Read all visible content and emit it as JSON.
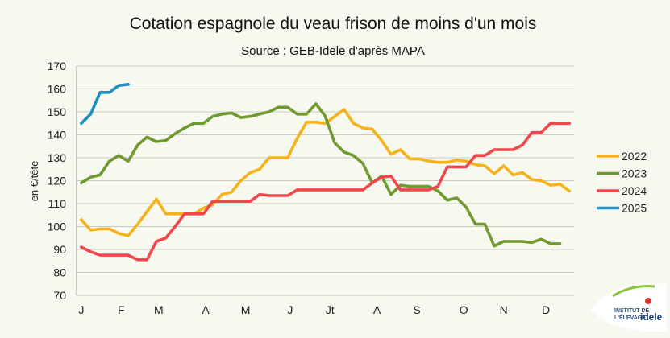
{
  "chart_data": {
    "type": "line",
    "title": "Cotation espagnole du veau frison de moins d'un mois",
    "subtitle": "Source : GEB-Idele d'après MAPA",
    "ylabel": "en €/tête",
    "xlabel": "",
    "ylim": [
      70,
      170
    ],
    "yticks": [
      70,
      80,
      90,
      100,
      110,
      120,
      130,
      140,
      150,
      160,
      170
    ],
    "week_count": 53,
    "month_ticks": [
      {
        "label": "J",
        "week": 1
      },
      {
        "label": "F",
        "week": 9.5
      },
      {
        "label": "M",
        "week": 17.5
      },
      {
        "label": "A",
        "week": 27.5
      },
      {
        "label": "M",
        "week": 36.0
      },
      {
        "label": "J",
        "week": 45.5
      },
      {
        "label": "Jt",
        "week": 54.0
      },
      {
        "label": "A",
        "week": 64.0
      },
      {
        "label": "S",
        "week": 72.5
      },
      {
        "label": "O",
        "week": 82.5
      },
      {
        "label": "N",
        "week": 91.0
      },
      {
        "label": "D",
        "week": 100.0
      }
    ],
    "grid": true,
    "legend_position": "right",
    "series": [
      {
        "name": "2022",
        "color": "#f6b21b",
        "values": [
          103,
          98.5,
          99,
          99,
          97,
          96,
          101,
          106.5,
          112,
          105.5,
          105.5,
          105.5,
          105.5,
          108,
          109.5,
          114,
          115,
          120,
          123.5,
          125,
          130,
          130,
          130,
          138.5,
          145.5,
          145.5,
          145,
          148,
          151,
          145,
          143,
          142.5,
          137.5,
          131.5,
          133.5,
          129.5,
          129.5,
          128.5,
          128,
          128,
          129,
          128.5,
          127,
          126.5,
          123,
          126.5,
          122.5,
          123.5,
          120.5,
          120,
          118,
          118.5,
          115.5
        ]
      },
      {
        "name": "2023",
        "color": "#6f9a2f",
        "values": [
          119,
          121.5,
          122.5,
          128.5,
          131,
          128.5,
          135.5,
          139,
          137,
          137.5,
          140.5,
          143,
          145,
          145,
          148,
          149,
          149.5,
          147.5,
          148,
          149,
          150,
          152,
          152,
          149,
          149,
          153.5,
          148,
          136.5,
          132.5,
          131,
          127.5,
          119,
          122,
          114,
          118,
          117.5,
          117.5,
          117.5,
          115.5,
          111.5,
          112.5,
          108.5,
          101,
          101,
          91.5,
          93.5,
          93.5,
          93.5,
          93,
          94.5,
          92.5,
          92.5
        ]
      },
      {
        "name": "2024",
        "color": "#f1474b",
        "values": [
          91,
          89,
          87.5,
          87.5,
          87.5,
          87.5,
          85.5,
          85.5,
          93.5,
          95,
          100,
          105.5,
          105.5,
          105.5,
          111,
          111,
          111,
          111,
          111,
          114,
          113.5,
          113.5,
          113.5,
          116,
          116,
          116,
          116,
          116,
          116,
          116,
          116,
          119,
          121.5,
          122,
          116,
          116,
          116,
          116,
          117.5,
          126,
          126,
          126,
          131,
          131,
          133.5,
          133.5,
          133.5,
          135.5,
          141,
          141,
          145,
          145,
          145
        ]
      },
      {
        "name": "2025",
        "color": "#1f8fc3",
        "values": [
          145,
          149,
          158.5,
          158.5,
          161.5,
          162
        ]
      }
    ]
  },
  "logo": {
    "line1": "INSTITUT DE",
    "line2": "L'ÉLEVAGE",
    "brand": "idele"
  }
}
